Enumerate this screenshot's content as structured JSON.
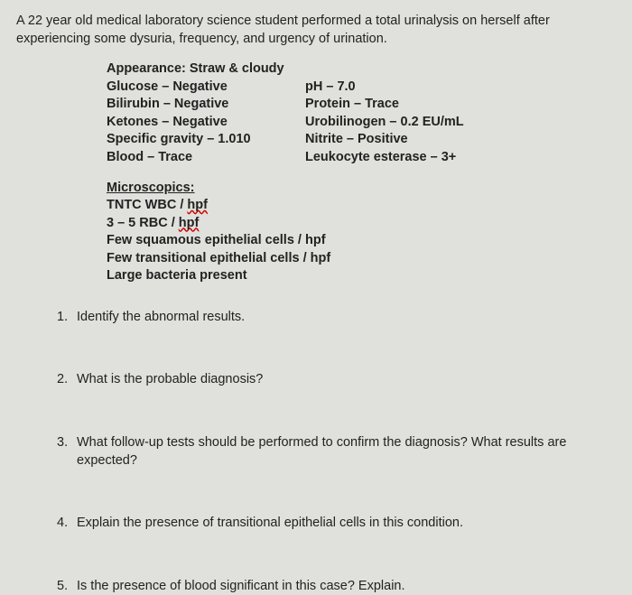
{
  "intro": "A 22 year old medical laboratory science student performed a total urinalysis on herself after experiencing some dysuria, frequency, and urgency of urination.",
  "chemistry": {
    "appearance": "Appearance: Straw & cloudy",
    "left": {
      "glucose": "Glucose – Negative",
      "bilirubin": "Bilirubin – Negative",
      "ketones": "Ketones – Negative",
      "sg": "Specific gravity – 1.010",
      "blood": "Blood – Trace"
    },
    "right": {
      "ph": "pH – 7.0",
      "protein": "Protein – Trace",
      "urobilinogen": "Urobilinogen – 0.2 EU/mL",
      "nitrite": "Nitrite – Positive",
      "le": "Leukocyte esterase – 3+"
    }
  },
  "microscopics": {
    "title": "Microscopics:",
    "wbc_prefix": "TNTC WBC / ",
    "wbc_wavy": "hpf",
    "rbc_prefix": "3 – 5 RBC / ",
    "rbc_wavy": "hpf",
    "squamous": "Few squamous epithelial cells / hpf",
    "transitional": "Few transitional epithelial cells / hpf",
    "bacteria": "Large bacteria present"
  },
  "questions": [
    {
      "num": "1.",
      "text": "Identify the abnormal results."
    },
    {
      "num": "2.",
      "text": "What is the probable diagnosis?"
    },
    {
      "num": "3.",
      "text": "What follow-up tests should be performed to confirm the diagnosis?  What results are expected?"
    },
    {
      "num": "4.",
      "text": "Explain the presence of transitional epithelial cells in this condition."
    },
    {
      "num": "5.",
      "text": "Is the presence of blood significant in this case? Explain."
    }
  ]
}
